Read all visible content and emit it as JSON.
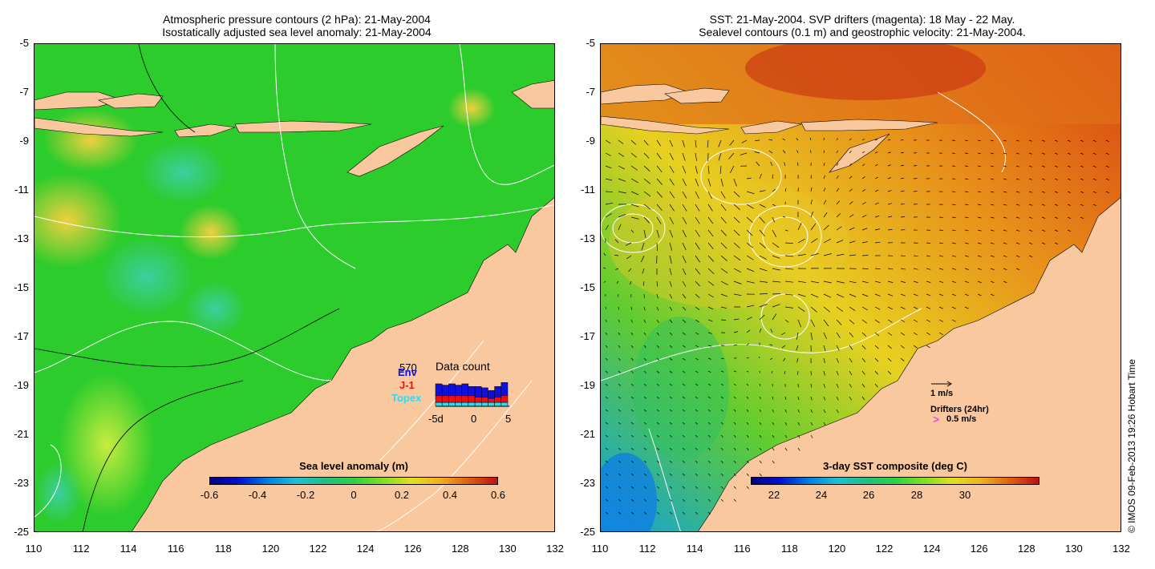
{
  "left_panel": {
    "title_line1": "Atmospheric pressure contours (2 hPa): 21-May-2004",
    "title_line2": "Isostatically adjusted sea level anomaly: 21-May-2004",
    "colorbar_title": "Sea level anomaly (m)",
    "colorbar_ticks": [
      "-0.6",
      "-0.4",
      "-0.2",
      "0",
      "0.2",
      "0.4",
      "0.6"
    ],
    "inset": {
      "title": "Data count",
      "max_count": "570",
      "series_labels": [
        "Env",
        "J-1",
        "Topex"
      ],
      "series_colors": [
        "#1010dd",
        "#ee1010",
        "#30d8f0"
      ],
      "xticks": [
        "-5d",
        "0",
        "5"
      ],
      "bars_env": [
        9,
        8,
        9,
        8,
        9,
        7,
        8,
        7,
        6,
        8,
        10
      ],
      "bars_j1": [
        5,
        5,
        5,
        5,
        5,
        5,
        4,
        4,
        3,
        4,
        5
      ],
      "bars_topex": [
        3,
        3,
        3,
        3,
        3,
        3,
        3,
        3,
        3,
        3,
        3
      ]
    }
  },
  "right_panel": {
    "title_line1": "SST: 21-May-2004. SVP drifters (magenta): 18 May - 22 May.",
    "title_line2": "Sealevel contours (0.1 m) and geostrophic velocity: 21-May-2004.",
    "colorbar_title": "3-day SST composite (deg C)",
    "colorbar_ticks": [
      "22",
      "24",
      "26",
      "28",
      "30"
    ],
    "velocity_legend": "1 m/s",
    "drifter_legend_title": "Drifters (24hr)",
    "drifter_legend_value": "0.5 m/s"
  },
  "axes": {
    "yticks": [
      "-5",
      "-7",
      "-9",
      "-11",
      "-13",
      "-15",
      "-17",
      "-19",
      "-21",
      "-23",
      "-25"
    ],
    "xticks": [
      "110",
      "112",
      "114",
      "116",
      "118",
      "120",
      "122",
      "124",
      "126",
      "128",
      "130",
      "132"
    ]
  },
  "credit": "© IMOS 09-Feb-2013 19:26 Hobart Time",
  "colors": {
    "land": "#f9c89e",
    "sla_mid": "#2ccc2c",
    "sst_warm": "#e08a20"
  }
}
